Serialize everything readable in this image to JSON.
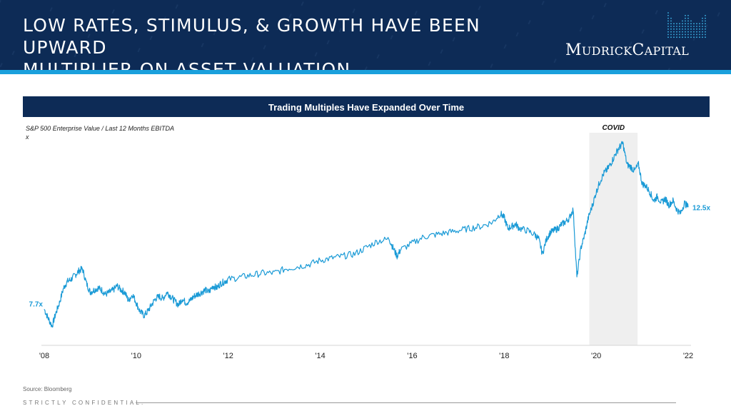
{
  "header": {
    "title_line1": "LOW RATES, STIMULUS, & GROWTH HAVE BEEN UPWARD",
    "title_line2": "MULTIPLIER ON ASSET VALUATION…",
    "logo_icon": "mudrick-m-mark-icon",
    "logo": {
      "m": "M",
      "udrick": "UDRICK",
      "c": "C",
      "apital": "APITAL"
    },
    "bg_color": "#0d2b56",
    "accent_color": "#1aa0dc"
  },
  "banner": {
    "text": "Trading Multiples Have Expanded Over Time"
  },
  "chart_data": {
    "type": "line",
    "title": "Trading Multiples Have Expanded Over Time",
    "ylabel": "S&P 500 Enterprise Value / Last 12 Months EBITDA",
    "yunit": "x",
    "xlim": [
      2008,
      2022
    ],
    "ylim": [
      6,
      16
    ],
    "grid": false,
    "x_ticks": [
      {
        "x": 2008,
        "label": "'08"
      },
      {
        "x": 2010,
        "label": "'10"
      },
      {
        "x": 2012,
        "label": "'12"
      },
      {
        "x": 2014,
        "label": "'14"
      },
      {
        "x": 2016,
        "label": "'16"
      },
      {
        "x": 2018,
        "label": "'18"
      },
      {
        "x": 2020,
        "label": "'20"
      },
      {
        "x": 2022,
        "label": "'22"
      }
    ],
    "series": [
      {
        "color": "#1a9ad6",
        "x": [
          2008.0,
          2008.08,
          2008.17,
          2008.25,
          2008.33,
          2008.42,
          2008.5,
          2008.58,
          2008.67,
          2008.75,
          2008.83,
          2008.92,
          2009.0,
          2009.08,
          2009.17,
          2009.25,
          2009.33,
          2009.42,
          2009.5,
          2009.58,
          2009.67,
          2009.75,
          2009.83,
          2009.92,
          2010.0,
          2010.08,
          2010.17,
          2010.25,
          2010.33,
          2010.42,
          2010.5,
          2010.58,
          2010.67,
          2010.75,
          2010.83,
          2010.92,
          2011.0,
          2011.08,
          2011.17,
          2011.25,
          2011.33,
          2011.42,
          2011.5,
          2011.58,
          2011.67,
          2011.75,
          2011.83,
          2011.92,
          2012.0,
          2012.25,
          2012.5,
          2012.75,
          2013.0,
          2013.25,
          2013.5,
          2013.75,
          2014.0,
          2014.25,
          2014.5,
          2014.75,
          2015.0,
          2015.25,
          2015.5,
          2015.58,
          2015.67,
          2015.75,
          2016.0,
          2016.25,
          2016.5,
          2016.75,
          2017.0,
          2017.25,
          2017.5,
          2017.75,
          2017.92,
          2018.0,
          2018.08,
          2018.17,
          2018.25,
          2018.33,
          2018.5,
          2018.67,
          2018.75,
          2018.83,
          2018.92,
          2019.0,
          2019.08,
          2019.17,
          2019.25,
          2019.33,
          2019.42,
          2019.5,
          2019.58,
          2019.67,
          2019.75,
          2019.83,
          2019.92,
          2020.0,
          2020.08,
          2020.17,
          2020.25,
          2020.33,
          2020.42,
          2020.5,
          2020.58,
          2020.67,
          2020.75,
          2020.83,
          2020.92,
          2021.0,
          2021.08,
          2021.17,
          2021.25,
          2021.33,
          2021.42,
          2021.5,
          2021.58,
          2021.67,
          2021.75,
          2021.83,
          2021.92,
          2022.0
        ],
        "y": [
          7.7,
          7.3,
          6.9,
          7.5,
          8.0,
          8.7,
          9.0,
          9.1,
          9.3,
          9.5,
          9.6,
          8.9,
          8.5,
          8.6,
          8.7,
          8.6,
          8.4,
          8.5,
          8.6,
          8.8,
          8.6,
          8.5,
          8.1,
          8.4,
          8.0,
          7.6,
          7.4,
          7.6,
          7.9,
          8.2,
          8.3,
          8.2,
          8.5,
          8.3,
          8.1,
          7.9,
          8.2,
          8.0,
          8.1,
          8.3,
          8.4,
          8.5,
          8.6,
          8.5,
          8.8,
          8.7,
          8.9,
          9.0,
          9.1,
          9.2,
          9.3,
          9.4,
          9.4,
          9.6,
          9.7,
          9.8,
          10.0,
          10.1,
          10.2,
          10.3,
          10.6,
          10.9,
          11.0,
          10.6,
          10.2,
          10.5,
          10.8,
          11.1,
          11.2,
          11.3,
          11.4,
          11.5,
          11.6,
          11.8,
          12.2,
          12.0,
          11.5,
          11.6,
          11.7,
          11.5,
          11.4,
          11.2,
          11.0,
          10.3,
          11.0,
          11.3,
          11.4,
          11.5,
          11.7,
          11.8,
          12.0,
          12.4,
          9.2,
          10.6,
          11.2,
          12.0,
          12.6,
          13.2,
          13.7,
          14.1,
          14.3,
          14.6,
          15.0,
          15.3,
          15.5,
          14.5,
          14.4,
          14.2,
          14.5,
          13.6,
          13.5,
          13.2,
          12.8,
          13.0,
          12.7,
          12.9,
          12.6,
          12.8,
          12.4,
          12.2,
          12.7,
          12.5
        ]
      }
    ],
    "labels": [
      {
        "text": "7.7x",
        "x": 2008,
        "y": 7.7,
        "side": "left"
      },
      {
        "text": "12.5x",
        "x": 2022,
        "y": 12.5,
        "side": "right"
      }
    ],
    "shaded_regions": [
      {
        "label": "COVID",
        "x0": 2019.85,
        "x1": 2020.9,
        "color": "#efefef"
      }
    ]
  },
  "footer": {
    "source": "Source: Bloomberg",
    "confidential": "STRICTLY CONFIDENTIAL."
  }
}
